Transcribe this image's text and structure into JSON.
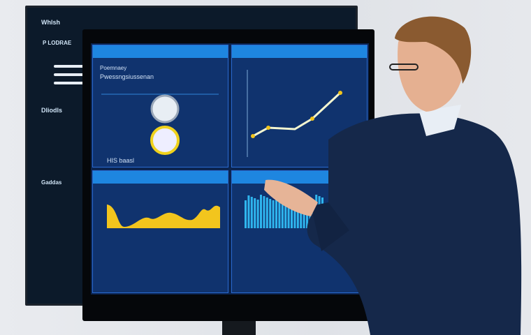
{
  "back_monitor": {
    "brand": "Whlsh",
    "section_1": "P LODRAE",
    "section_2": "Dliodls",
    "section_3": "Gaddas"
  },
  "front_monitor": {
    "panel_1": {
      "title": "Poemnaey",
      "subtitle": "Pwessngsiussenan",
      "footer": "HIS baasl"
    },
    "panel_2": {
      "chart_type": "line"
    },
    "panel_3": {
      "chart_type": "area",
      "color": "#f2c51d"
    },
    "panel_4": {
      "chart_type": "bar",
      "color": "#2fb5ee"
    }
  }
}
